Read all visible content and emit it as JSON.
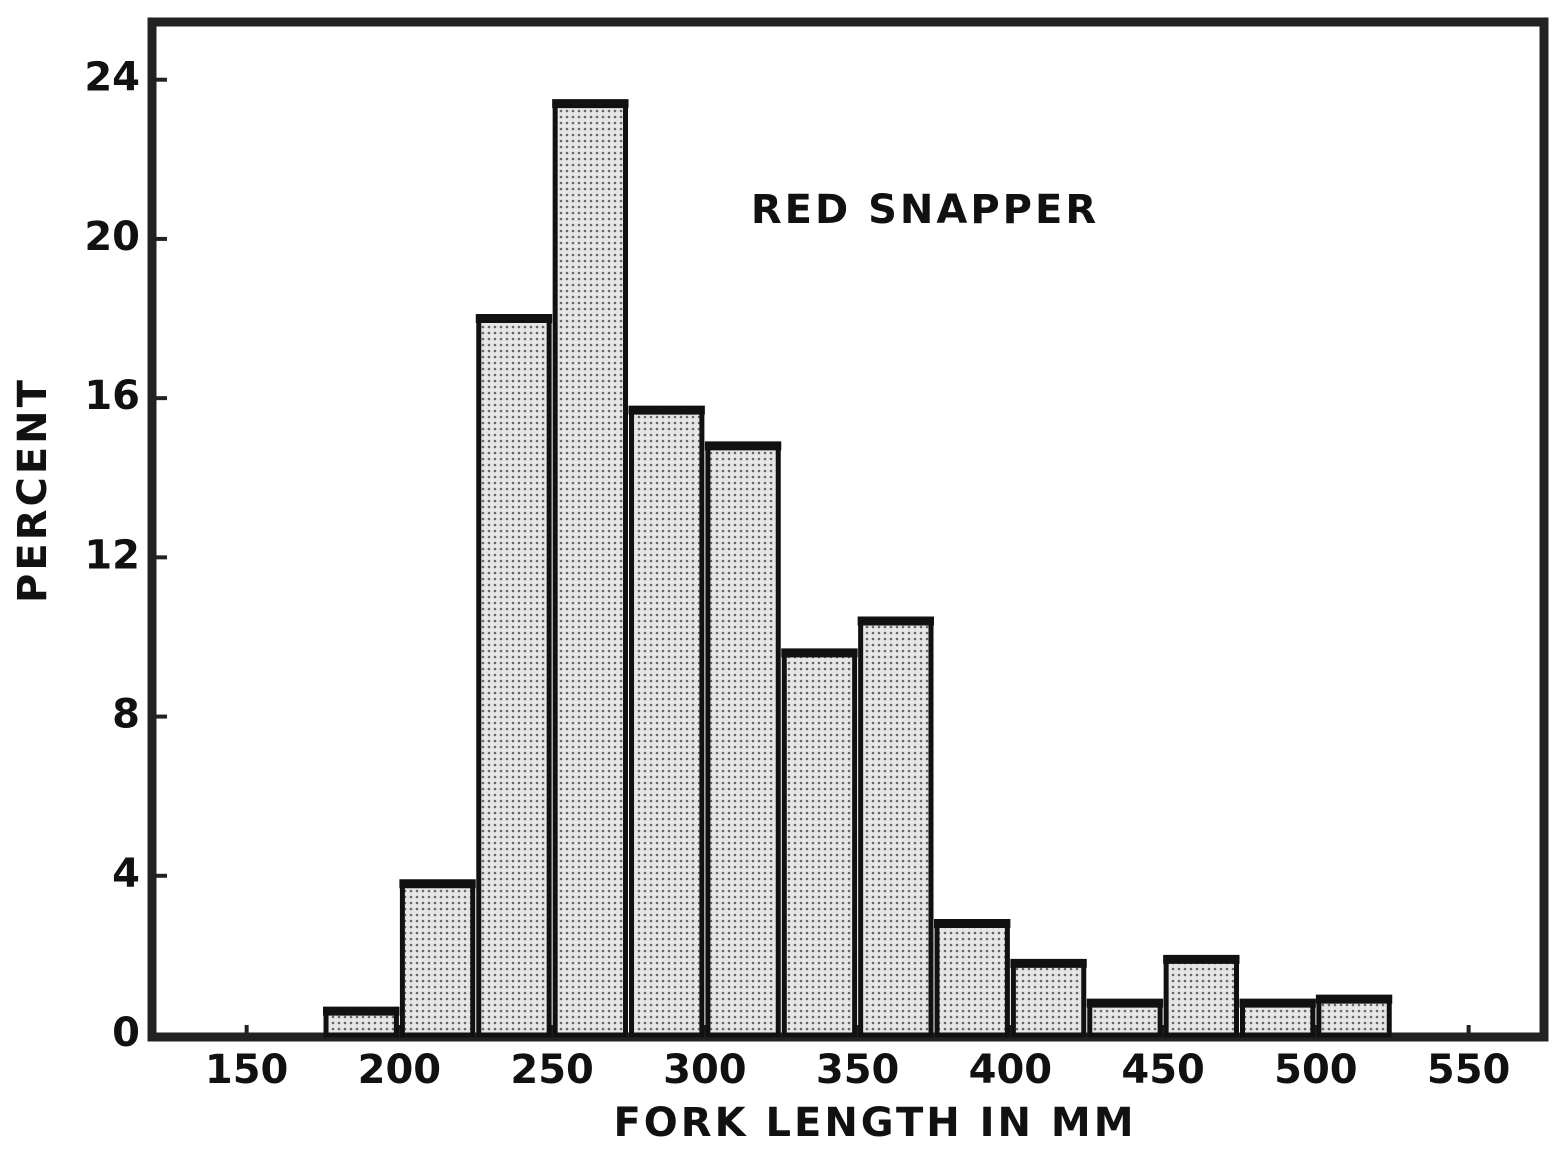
{
  "chart_data": {
    "type": "histogram",
    "title": "RED SNAPPER",
    "xlabel": "FORK LENGTH IN MM",
    "ylabel": "PERCENT",
    "bins": [
      175,
      200,
      225,
      250,
      275,
      300,
      325,
      350,
      375,
      400,
      425,
      450,
      475,
      500,
      525
    ],
    "values": [
      0.6,
      3.8,
      18,
      23.4,
      15.7,
      14.8,
      9.6,
      10.4,
      2.8,
      1.8,
      0.8,
      1.9,
      0.8,
      0.9
    ],
    "color": "#d9d9d9",
    "xlim": [
      120,
      575
    ],
    "xticks": [
      150,
      200,
      250,
      300,
      350,
      400,
      450,
      500,
      550
    ],
    "ylim": [
      0,
      25.5
    ],
    "yticks": [
      0,
      4,
      8,
      12,
      16,
      20,
      24
    ]
  }
}
